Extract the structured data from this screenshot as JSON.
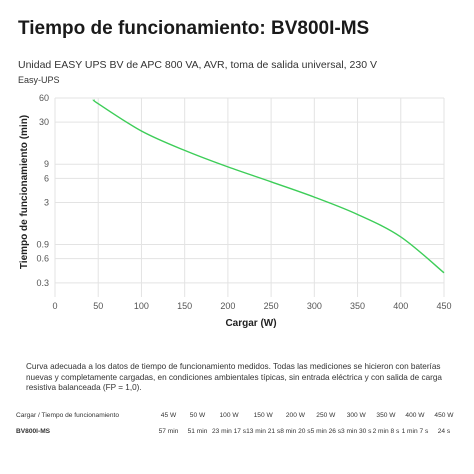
{
  "page": {
    "title": "Tiempo de funcionamiento: BV800I-MS",
    "subtitle": "Unidad EASY UPS BV de APC 800 VA, AVR, toma de salida universal, 230 V",
    "family": "Easy-UPS",
    "note": "Curva adecuada a los datos de tiempo de funcionamiento medidos. Todas las mediciones se hicieron con baterías nuevas y completamente cargadas, en condiciones ambientales típicas, sin entrada eléctrica y con salida de carga resistiva balanceada (FP = 1,0)."
  },
  "chart_data": {
    "type": "line",
    "title": "",
    "xlabel": "Cargar (W)",
    "ylabel": "Tiempo de funcionamiento (min)",
    "x_scale": "linear",
    "y_scale": "log",
    "xlim": [
      0,
      450
    ],
    "ylim": [
      0.2,
      60
    ],
    "x_ticks": [
      0,
      50,
      100,
      150,
      200,
      250,
      300,
      350,
      400,
      450
    ],
    "y_ticks": [
      0.3,
      0.6,
      0.9,
      3,
      6,
      9,
      30,
      60
    ],
    "grid": true,
    "line_color": "#3dcd58",
    "series": [
      {
        "x": [
          45,
          50,
          100,
          150,
          200,
          250,
          300,
          350,
          400,
          450
        ],
        "y": [
          57,
          51,
          23.3,
          13.35,
          8.33,
          5.43,
          3.5,
          2.13,
          1.12,
          0.4
        ]
      }
    ]
  },
  "runtime_table": {
    "header_label": "Cargar / Tiempo de funcionamiento",
    "columns": [
      "45 W",
      "50 W",
      "100 W",
      "150 W",
      "200 W",
      "250 W",
      "300 W",
      "350 W",
      "400 W",
      "450 W"
    ],
    "rows": [
      {
        "model": "BV800I-MS",
        "values": [
          "57 min",
          "51 min",
          "23 min 17 s",
          "13 min 21 s",
          "8 min 20 s",
          "5 min 26 s",
          "3 min 30 s",
          "2 min 8 s",
          "1 min 7 s",
          "24 s"
        ]
      }
    ]
  }
}
